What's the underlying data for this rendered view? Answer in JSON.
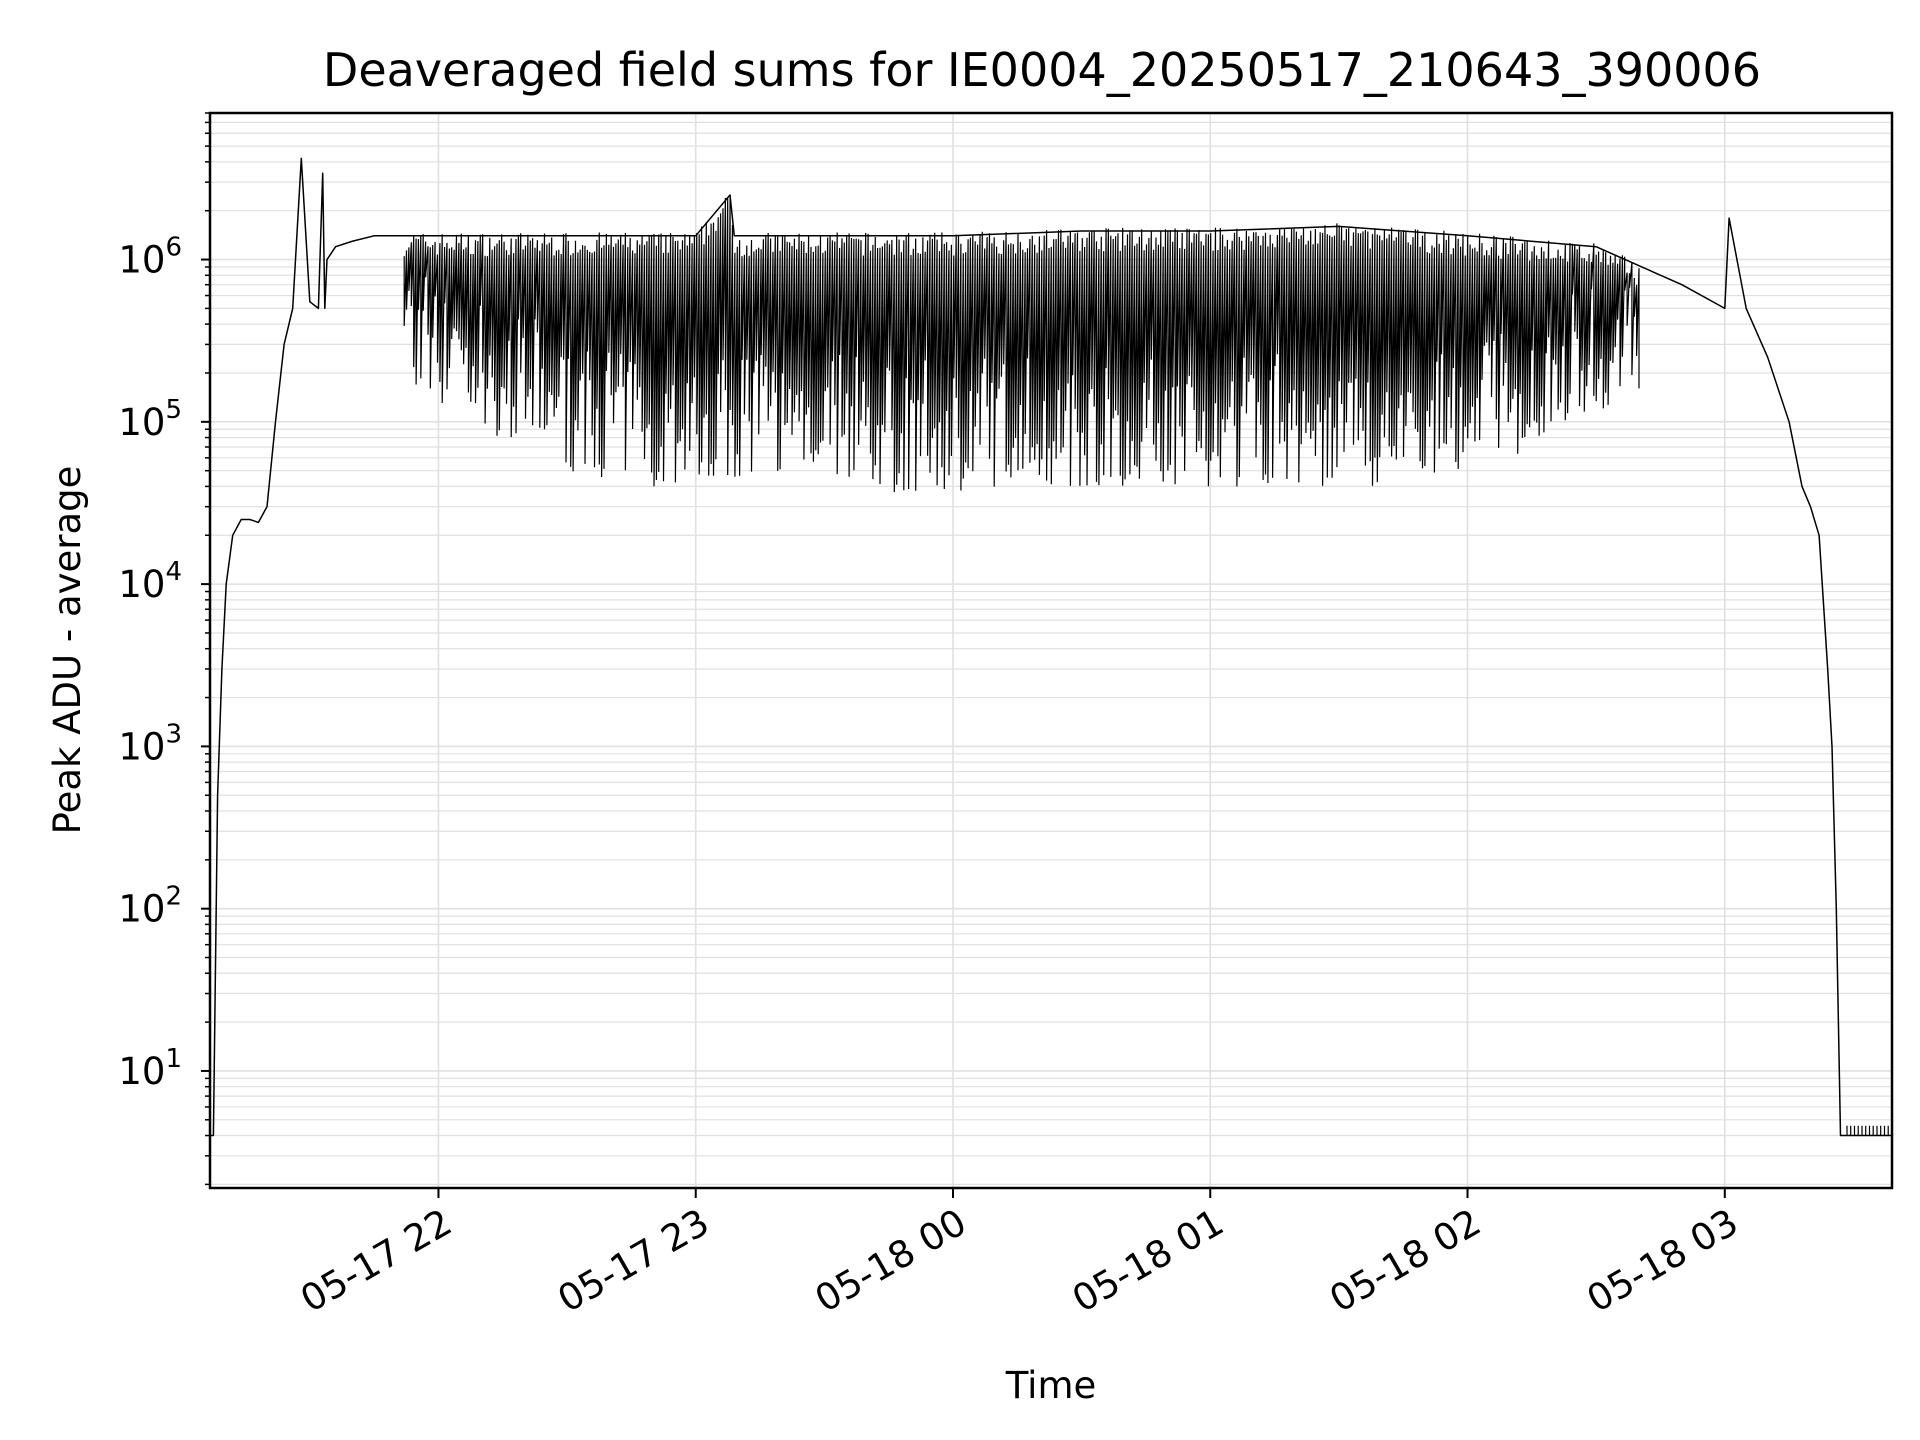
{
  "chart_data": {
    "type": "line",
    "title": "Deaveraged field sums for IE0004_20250517_210643_390006",
    "xlabel": "Time",
    "ylabel": "Peak ADU - average",
    "y_scale": "log",
    "ylim": [
      1.9,
      8000000
    ],
    "xlim": [
      "2025-05-17 21:06:43",
      "2025-05-18 03:39:00"
    ],
    "x_ticks": [
      "05-17 22",
      "05-17 23",
      "05-18 00",
      "05-18 01",
      "05-18 02",
      "05-18 03"
    ],
    "x_tick_values": [
      "2025-05-17 22:00",
      "2025-05-17 23:00",
      "2025-05-18 00:00",
      "2025-05-18 01:00",
      "2025-05-18 02:00",
      "2025-05-18 03:00"
    ],
    "y_ticks": [
      {
        "base": "10",
        "exp": "1",
        "value": 10
      },
      {
        "base": "10",
        "exp": "2",
        "value": 100
      },
      {
        "base": "10",
        "exp": "3",
        "value": 1000
      },
      {
        "base": "10",
        "exp": "4",
        "value": 10000
      },
      {
        "base": "10",
        "exp": "5",
        "value": 100000
      },
      {
        "base": "10",
        "exp": "6",
        "value": 1000000
      }
    ],
    "grid": true,
    "line_color": "#000000",
    "grid_color": "#e0e0e0",
    "series": [
      {
        "x": [
          "2025-05-17 21:06:43",
          "2025-05-17 21:07:30",
          "2025-05-17 21:08:30",
          "2025-05-17 21:09:30",
          "2025-05-17 21:10:30",
          "2025-05-17 21:12:00",
          "2025-05-17 21:14:00",
          "2025-05-17 21:16:00",
          "2025-05-17 21:18:00",
          "2025-05-17 21:20:00",
          "2025-05-17 21:22:00",
          "2025-05-17 21:24:00",
          "2025-05-17 21:26:00",
          "2025-05-17 21:28:00",
          "2025-05-17 21:30:00",
          "2025-05-17 21:32:00",
          "2025-05-17 21:33:00",
          "2025-05-17 21:33:30",
          "2025-05-17 21:34:00",
          "2025-05-17 21:36:00",
          "2025-05-17 21:40:00",
          "2025-05-17 21:45:00",
          "2025-05-17 21:50:00",
          "2025-05-17 21:51:00",
          "2025-05-17 21:52:00",
          "2025-05-17 21:55:00",
          "2025-05-17 22:00:00",
          "2025-05-17 22:30:00",
          "2025-05-17 23:00:00",
          "2025-05-17 23:08:00",
          "2025-05-17 23:09:00",
          "2025-05-17 23:30:00",
          "2025-05-18 00:00:00",
          "2025-05-18 00:30:00",
          "2025-05-18 01:00:00",
          "2025-05-18 01:30:00",
          "2025-05-18 02:00:00",
          "2025-05-18 02:30:00",
          "2025-05-18 02:50:00",
          "2025-05-18 03:00:00",
          "2025-05-18 03:01:00",
          "2025-05-18 03:05:00",
          "2025-05-18 03:10:00",
          "2025-05-18 03:15:00",
          "2025-05-18 03:18:00",
          "2025-05-18 03:20:00",
          "2025-05-18 03:22:00",
          "2025-05-18 03:24:00",
          "2025-05-18 03:25:00",
          "2025-05-18 03:26:00",
          "2025-05-18 03:27:00",
          "2025-05-18 03:28:00",
          "2025-05-18 03:28:30",
          "2025-05-18 03:39:00"
        ],
        "y": [
          4,
          4,
          500,
          3000,
          10000,
          20000,
          25000,
          25000,
          24000,
          30000,
          100000,
          300000,
          500000,
          4200000,
          550000,
          500000,
          3400000,
          500000,
          1000000,
          1200000,
          1300000,
          1400000,
          1400000,
          1400000,
          1400000,
          1400000,
          1400000,
          1400000,
          1400000,
          2500000,
          1400000,
          1400000,
          1400000,
          1500000,
          1500000,
          1600000,
          1400000,
          1200000,
          700000,
          500000,
          1800000,
          500000,
          250000,
          100000,
          40000,
          30000,
          20000,
          3000,
          1000,
          100,
          4,
          4,
          4,
          4
        ]
      }
    ],
    "dip_band": {
      "x_range": [
        "2025-05-17 21:52:00",
        "2025-05-18 02:40:00"
      ],
      "dip_lows": [
        [
          "2025-05-17 21:52:00",
          150000
        ],
        [
          "2025-05-17 22:10:00",
          90000
        ],
        [
          "2025-05-17 22:30:00",
          50000
        ],
        [
          "2025-05-17 22:50:00",
          40000
        ],
        [
          "2025-05-17 23:30:00",
          50000
        ],
        [
          "2025-05-17 23:45:00",
          35000
        ],
        [
          "2025-05-18 00:15:00",
          40000
        ],
        [
          "2025-05-18 01:00:00",
          40000
        ],
        [
          "2025-05-18 01:40:00",
          40000
        ],
        [
          "2025-05-18 02:10:00",
          60000
        ],
        [
          "2025-05-18 02:40:00",
          150000
        ]
      ]
    }
  }
}
